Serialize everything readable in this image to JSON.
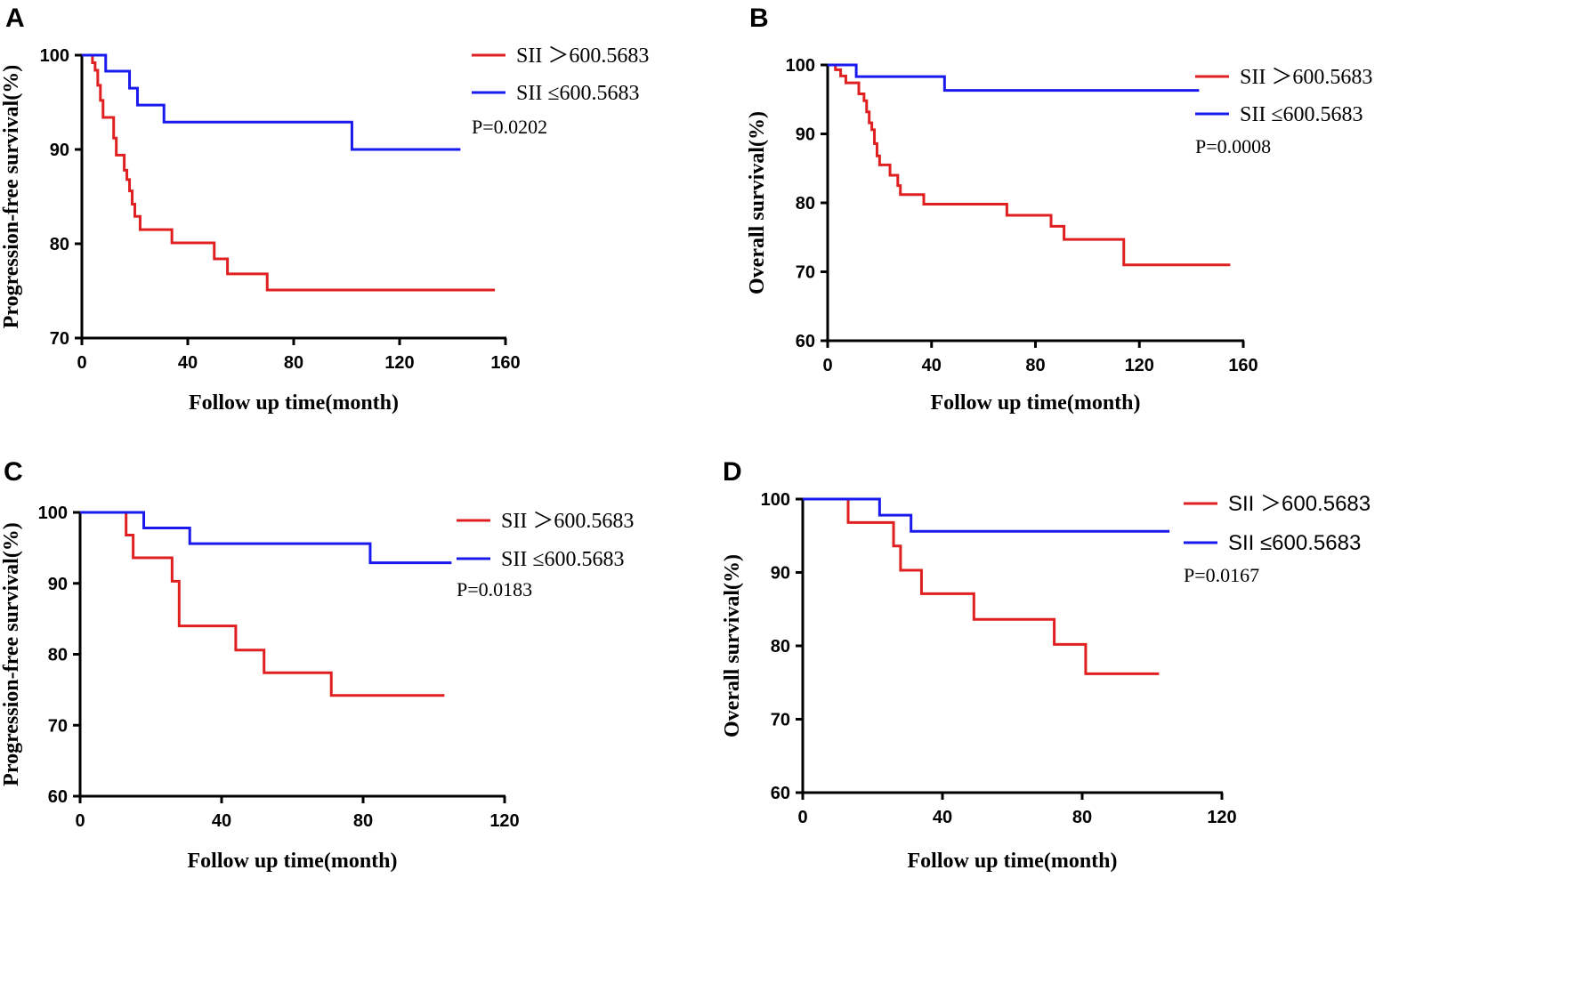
{
  "chart_data": [
    {
      "type": "line",
      "panel": "A",
      "xlabel": "Follow up time(month)",
      "ylabel": "Progression-free survival(%)",
      "xlim": [
        0,
        160
      ],
      "ylim": [
        70,
        100
      ],
      "xticks": [
        0,
        40,
        80,
        120,
        160
      ],
      "yticks": [
        70,
        80,
        90,
        100
      ],
      "grid": false,
      "legend_position": "top-right",
      "pvalue": "P=0.0202",
      "series": [
        {
          "name": "SII ＞600.5683",
          "color": "#e02020",
          "x": [
            0,
            4,
            5,
            6,
            7,
            8,
            10,
            12,
            13,
            15,
            16,
            17,
            18,
            19,
            20,
            22,
            24,
            34,
            50,
            55,
            70,
            156
          ],
          "y": [
            100,
            99.2,
            98.4,
            96.8,
            95.2,
            93.4,
            93.4,
            91.2,
            89.4,
            89.4,
            87.8,
            86.8,
            85.6,
            84.2,
            82.9,
            81.5,
            81.5,
            80.1,
            78.4,
            76.8,
            75.1,
            75.1
          ]
        },
        {
          "name": "SII ≤600.5683",
          "color": "#1a1aee",
          "x": [
            0,
            9,
            18,
            21,
            31,
            102,
            143
          ],
          "y": [
            100,
            98.3,
            96.5,
            94.7,
            92.9,
            90.0,
            90.0
          ]
        }
      ]
    },
    {
      "type": "line",
      "panel": "B",
      "xlabel": "Follow up time(month)",
      "ylabel": "Overall survival(%)",
      "xlim": [
        0,
        160
      ],
      "ylim": [
        60,
        100
      ],
      "xticks": [
        0,
        40,
        80,
        120,
        160
      ],
      "yticks": [
        60,
        70,
        80,
        90,
        100
      ],
      "grid": false,
      "legend_position": "top-right",
      "pvalue": "P=0.0008",
      "series": [
        {
          "name": "SII ＞600.5683",
          "color": "#e02020",
          "x": [
            0,
            3,
            5,
            7,
            12,
            14,
            15,
            16,
            17,
            18,
            19,
            20,
            21,
            24,
            27,
            28,
            37,
            69,
            86,
            91,
            114,
            155
          ],
          "y": [
            100,
            99.3,
            98.4,
            97.4,
            95.8,
            94.8,
            93.2,
            91.6,
            90.6,
            88.6,
            86.8,
            85.5,
            85.5,
            84.0,
            82.5,
            81.2,
            79.8,
            78.2,
            76.6,
            74.7,
            71.0,
            71.0
          ]
        },
        {
          "name": "SII ≤600.5683",
          "color": "#1a1aee",
          "x": [
            0,
            11,
            45,
            143
          ],
          "y": [
            100,
            98.3,
            96.3,
            96.3
          ]
        }
      ]
    },
    {
      "type": "line",
      "panel": "C",
      "xlabel": "Follow up time(month)",
      "ylabel": "Progression-free survival(%)",
      "xlim": [
        0,
        120
      ],
      "ylim": [
        60,
        100
      ],
      "xticks": [
        0,
        40,
        80,
        120
      ],
      "yticks": [
        60,
        70,
        80,
        90,
        100
      ],
      "grid": false,
      "legend_position": "top-right",
      "pvalue": "P=0.0183",
      "series": [
        {
          "name": "SII ＞600.5683",
          "color": "#e02020",
          "x": [
            0,
            13,
            15,
            26,
            28,
            44,
            52,
            71,
            103
          ],
          "y": [
            100,
            96.8,
            93.6,
            90.3,
            84.0,
            80.6,
            77.4,
            74.2,
            74.2
          ]
        },
        {
          "name": "SII ≤600.5683",
          "color": "#1a1aee",
          "x": [
            0,
            18,
            31,
            82,
            105
          ],
          "y": [
            100,
            97.8,
            95.6,
            92.9,
            92.9
          ]
        }
      ]
    },
    {
      "type": "line",
      "panel": "D",
      "xlabel": "Follow up time(month)",
      "ylabel": "Overall survival(%)",
      "xlim": [
        0,
        120
      ],
      "ylim": [
        60,
        100
      ],
      "xticks": [
        0,
        40,
        80,
        120
      ],
      "yticks": [
        60,
        70,
        80,
        90,
        100
      ],
      "grid": false,
      "legend_position": "top-right",
      "pvalue": "P=0.0167",
      "series": [
        {
          "name": "SII ＞600.5683",
          "color": "#e02020",
          "x": [
            0,
            13,
            26,
            28,
            34,
            49,
            72,
            81,
            102
          ],
          "y": [
            100,
            96.8,
            93.6,
            90.3,
            87.1,
            83.6,
            80.2,
            76.2,
            76.2
          ]
        },
        {
          "name": "SII ≤600.5683",
          "color": "#1a1aee",
          "x": [
            0,
            22,
            31,
            105
          ],
          "y": [
            100,
            97.8,
            95.6,
            95.6
          ]
        }
      ]
    }
  ]
}
